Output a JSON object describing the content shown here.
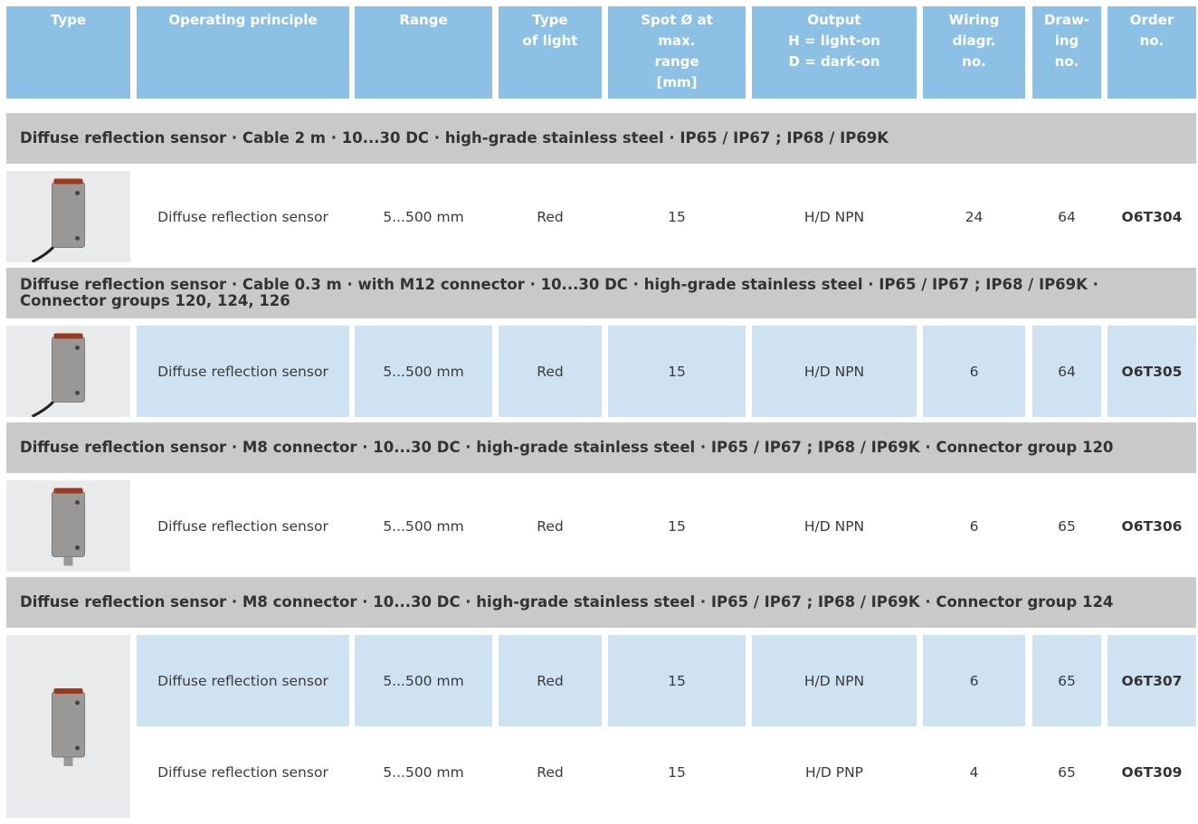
{
  "header": {
    "columns": [
      [
        "Type"
      ],
      [
        "Operating principle"
      ],
      [
        "Range"
      ],
      [
        "Type",
        "of light"
      ],
      [
        "Spot Ø at",
        "max.",
        "range",
        "[mm]"
      ],
      [
        "Output",
        "H = light-on",
        "D = dark-on"
      ],
      [
        "Wiring",
        "diagr.",
        "no."
      ],
      [
        "Draw-",
        "ing",
        "no."
      ],
      [
        "Order",
        "no."
      ]
    ]
  },
  "sections": [
    {
      "title": [
        "Diffuse reflection sensor · Cable 2 m · 10...30 DC · high-grade stainless steel · IP65 / IP67 ; IP68 / IP69K"
      ],
      "highlight": false,
      "rows": [
        [
          "Diffuse reflection sensor",
          "5...500 mm",
          "Red",
          15,
          "H/D NPN",
          24,
          64,
          "O6T304"
        ]
      ]
    },
    {
      "title": [
        "Diffuse reflection sensor · Cable 0.3 m · with M12 connector · 10...30 DC · high-grade stainless steel · IP65 / IP67 ; IP68 / IP69K ·",
        "Connector groups 120, 124, 126"
      ],
      "highlight": true,
      "rows": [
        [
          "Diffuse reflection sensor",
          "5...500 mm",
          "Red",
          15,
          "H/D NPN",
          6,
          64,
          "O6T305"
        ]
      ]
    },
    {
      "title": [
        "Diffuse reflection sensor · M8 connector · 10...30 DC · high-grade stainless steel · IP65 / IP67 ; IP68 / IP69K · Connector group 120"
      ],
      "highlight": false,
      "rows": [
        [
          "Diffuse reflection sensor",
          "5...500 mm",
          "Red",
          15,
          "H/D NPN",
          6,
          65,
          "O6T306"
        ]
      ]
    },
    {
      "title": [
        "Diffuse reflection sensor · M8 connector · 10...30 DC · high-grade stainless steel · IP65 / IP67 ; IP68 / IP69K · Connector group 124"
      ],
      "highlight": true,
      "rows": [
        [
          "Diffuse reflection sensor",
          "5...500 mm",
          "Red",
          15,
          "H/D NPN",
          6,
          65,
          "O6T307"
        ],
        [
          "Diffuse reflection sensor",
          "5...500 mm",
          "Red",
          15,
          "H/D PNP",
          4,
          65,
          "O6T309"
        ]
      ]
    }
  ]
}
